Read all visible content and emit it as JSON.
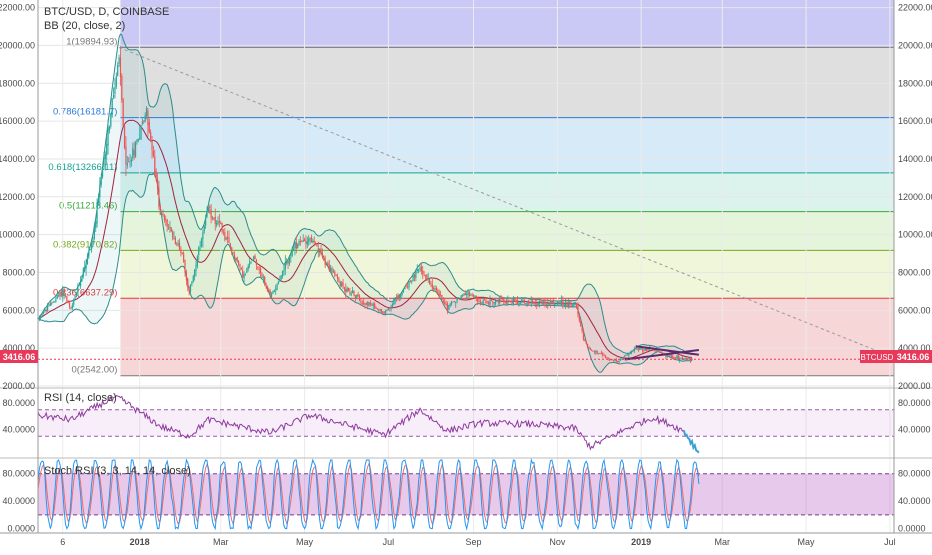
{
  "header": {
    "symbol_title": "BTC/USD, D, COINBASE",
    "bb_legend": "BB (20, close, 2)",
    "rsi_legend": "RSI (14, close)",
    "stoch_legend": "Stoch RSI (3, 3, 14, 14, close)"
  },
  "price_badge": {
    "label": "3416.06",
    "tag": "BTCUSD",
    "value": 3416.06,
    "color": "#e8395a"
  },
  "chart_data": [
    {
      "type": "candlestick",
      "title": "BTC/USD, D, COINBASE",
      "y_ticks": [
        "22000.00",
        "20000.00",
        "18000.00",
        "16000.00",
        "14000.00",
        "12000.00",
        "10000.00",
        "8000.00",
        "6000.00",
        "4000.00",
        "2000.00"
      ],
      "y_tick_values": [
        22000,
        20000,
        18000,
        16000,
        14000,
        12000,
        10000,
        8000,
        6000,
        4000,
        2000
      ],
      "ylim": [
        2000,
        22400
      ],
      "x_labels": [
        "6",
        "2018",
        "Mar",
        "May",
        "Jul",
        "Sep",
        "Nov",
        "2019",
        "Mar",
        "May",
        "Jul"
      ],
      "x_label_values": [
        "2017-11-06",
        "2018-01-01",
        "2018-03-01",
        "2018-05-01",
        "2018-07-01",
        "2018-09-01",
        "2018-11-01",
        "2019-01-01",
        "2019-03-01",
        "2019-05-01",
        "2019-07-01"
      ],
      "xlim": [
        "2017-10-19",
        "2019-07-04"
      ],
      "price_anchors": [
        {
          "date": "2017-10-19",
          "close": 5600
        },
        {
          "date": "2017-11-06",
          "close": 7000
        },
        {
          "date": "2017-11-12",
          "close": 6000
        },
        {
          "date": "2017-11-28",
          "close": 9800
        },
        {
          "date": "2017-12-07",
          "close": 14500
        },
        {
          "date": "2017-12-17",
          "close": 19300
        },
        {
          "date": "2017-12-22",
          "close": 13500
        },
        {
          "date": "2017-12-28",
          "close": 14500
        },
        {
          "date": "2018-01-06",
          "close": 16600
        },
        {
          "date": "2018-01-16",
          "close": 11200
        },
        {
          "date": "2018-02-01",
          "close": 9000
        },
        {
          "date": "2018-02-06",
          "close": 6900
        },
        {
          "date": "2018-02-20",
          "close": 11300
        },
        {
          "date": "2018-02-28",
          "close": 10500
        },
        {
          "date": "2018-03-18",
          "close": 7800
        },
        {
          "date": "2018-03-25",
          "close": 8900
        },
        {
          "date": "2018-04-06",
          "close": 6700
        },
        {
          "date": "2018-04-25",
          "close": 9500
        },
        {
          "date": "2018-05-05",
          "close": 9800
        },
        {
          "date": "2018-05-28",
          "close": 7300
        },
        {
          "date": "2018-06-12",
          "close": 6500
        },
        {
          "date": "2018-06-28",
          "close": 5900
        },
        {
          "date": "2018-07-08",
          "close": 6700
        },
        {
          "date": "2018-07-24",
          "close": 8200
        },
        {
          "date": "2018-08-13",
          "close": 6200
        },
        {
          "date": "2018-08-28",
          "close": 7000
        },
        {
          "date": "2018-09-05",
          "close": 6400
        },
        {
          "date": "2018-09-20",
          "close": 6500
        },
        {
          "date": "2018-10-15",
          "close": 6400
        },
        {
          "date": "2018-11-14",
          "close": 6350
        },
        {
          "date": "2018-11-20",
          "close": 4500
        },
        {
          "date": "2018-11-25",
          "close": 3900
        },
        {
          "date": "2018-12-15",
          "close": 3250
        },
        {
          "date": "2018-12-25",
          "close": 3900
        },
        {
          "date": "2019-01-09",
          "close": 4000
        },
        {
          "date": "2019-01-20",
          "close": 3600
        },
        {
          "date": "2019-02-01",
          "close": 3450
        },
        {
          "date": "2019-02-07",
          "close": 3416
        }
      ],
      "bollinger": {
        "period": 20,
        "stddev": 2
      },
      "fibonacci": {
        "levels": [
          {
            "label": "1(19894.93)",
            "value": 19894.93,
            "color": "#787878"
          },
          {
            "label": "0.786(16181.7)",
            "value": 16181.7,
            "color": "#2b7bd6"
          },
          {
            "label": "0.618(13266.11)",
            "value": 13266.11,
            "color": "#13a38f"
          },
          {
            "label": "0.5(11218.46)",
            "value": 11218.46,
            "color": "#3aa83a"
          },
          {
            "label": "0.382(9170.82)",
            "value": 9170.82,
            "color": "#76a820"
          },
          {
            "label": "0.236(6637.29)",
            "value": 6637.29,
            "color": "#e0393b"
          },
          {
            "label": "0(2542.00)",
            "value": 2542.0,
            "color": "#787878"
          }
        ],
        "top_zone": {
          "from": 19894.93,
          "to": 22400,
          "color": "#b8b6f0"
        },
        "start_date": "2017-12-18"
      },
      "trendline": {
        "from": {
          "date": "2017-12-17",
          "value": 19890
        },
        "to": {
          "date": "2019-07-04",
          "value": 3500
        }
      },
      "triangle": [
        {
          "date": "2018-12-20",
          "value": 3400
        },
        {
          "date": "2019-02-12",
          "value": 3900
        },
        {
          "date": "2018-12-28",
          "value": 4100
        },
        {
          "date": "2019-02-12",
          "value": 3650
        }
      ]
    },
    {
      "type": "line",
      "title": "RSI (14, close)",
      "y_ticks": [
        "80.0000",
        "40.0000"
      ],
      "y_tick_values": [
        80,
        40
      ],
      "ylim": [
        0,
        100
      ],
      "band": [
        30,
        70
      ],
      "anchors": [
        {
          "date": "2017-10-19",
          "value": 62
        },
        {
          "date": "2017-11-12",
          "value": 55
        },
        {
          "date": "2017-12-07",
          "value": 82
        },
        {
          "date": "2017-12-17",
          "value": 88
        },
        {
          "date": "2018-01-16",
          "value": 45
        },
        {
          "date": "2018-02-06",
          "value": 30
        },
        {
          "date": "2018-02-20",
          "value": 55
        },
        {
          "date": "2018-04-06",
          "value": 35
        },
        {
          "date": "2018-05-05",
          "value": 62
        },
        {
          "date": "2018-06-28",
          "value": 32
        },
        {
          "date": "2018-07-24",
          "value": 70
        },
        {
          "date": "2018-08-13",
          "value": 38
        },
        {
          "date": "2018-09-05",
          "value": 50
        },
        {
          "date": "2018-10-15",
          "value": 48
        },
        {
          "date": "2018-11-14",
          "value": 42
        },
        {
          "date": "2018-11-25",
          "value": 14
        },
        {
          "date": "2018-12-25",
          "value": 45
        },
        {
          "date": "2019-01-09",
          "value": 58
        },
        {
          "date": "2019-01-20",
          "value": 50
        },
        {
          "date": "2019-02-01",
          "value": 38
        },
        {
          "date": "2019-02-12",
          "value": 5
        }
      ]
    },
    {
      "type": "line",
      "title": "Stoch RSI (3, 3, 14, 14, close)",
      "y_ticks": [
        "80.0000",
        "40.0000",
        "0.0000"
      ],
      "y_tick_values": [
        80,
        40,
        0
      ],
      "ylim": [
        -5,
        100
      ],
      "band": [
        20,
        80
      ],
      "series": [
        {
          "color": "#2196f3"
        },
        {
          "color": "#ef6c6c"
        }
      ]
    }
  ]
}
